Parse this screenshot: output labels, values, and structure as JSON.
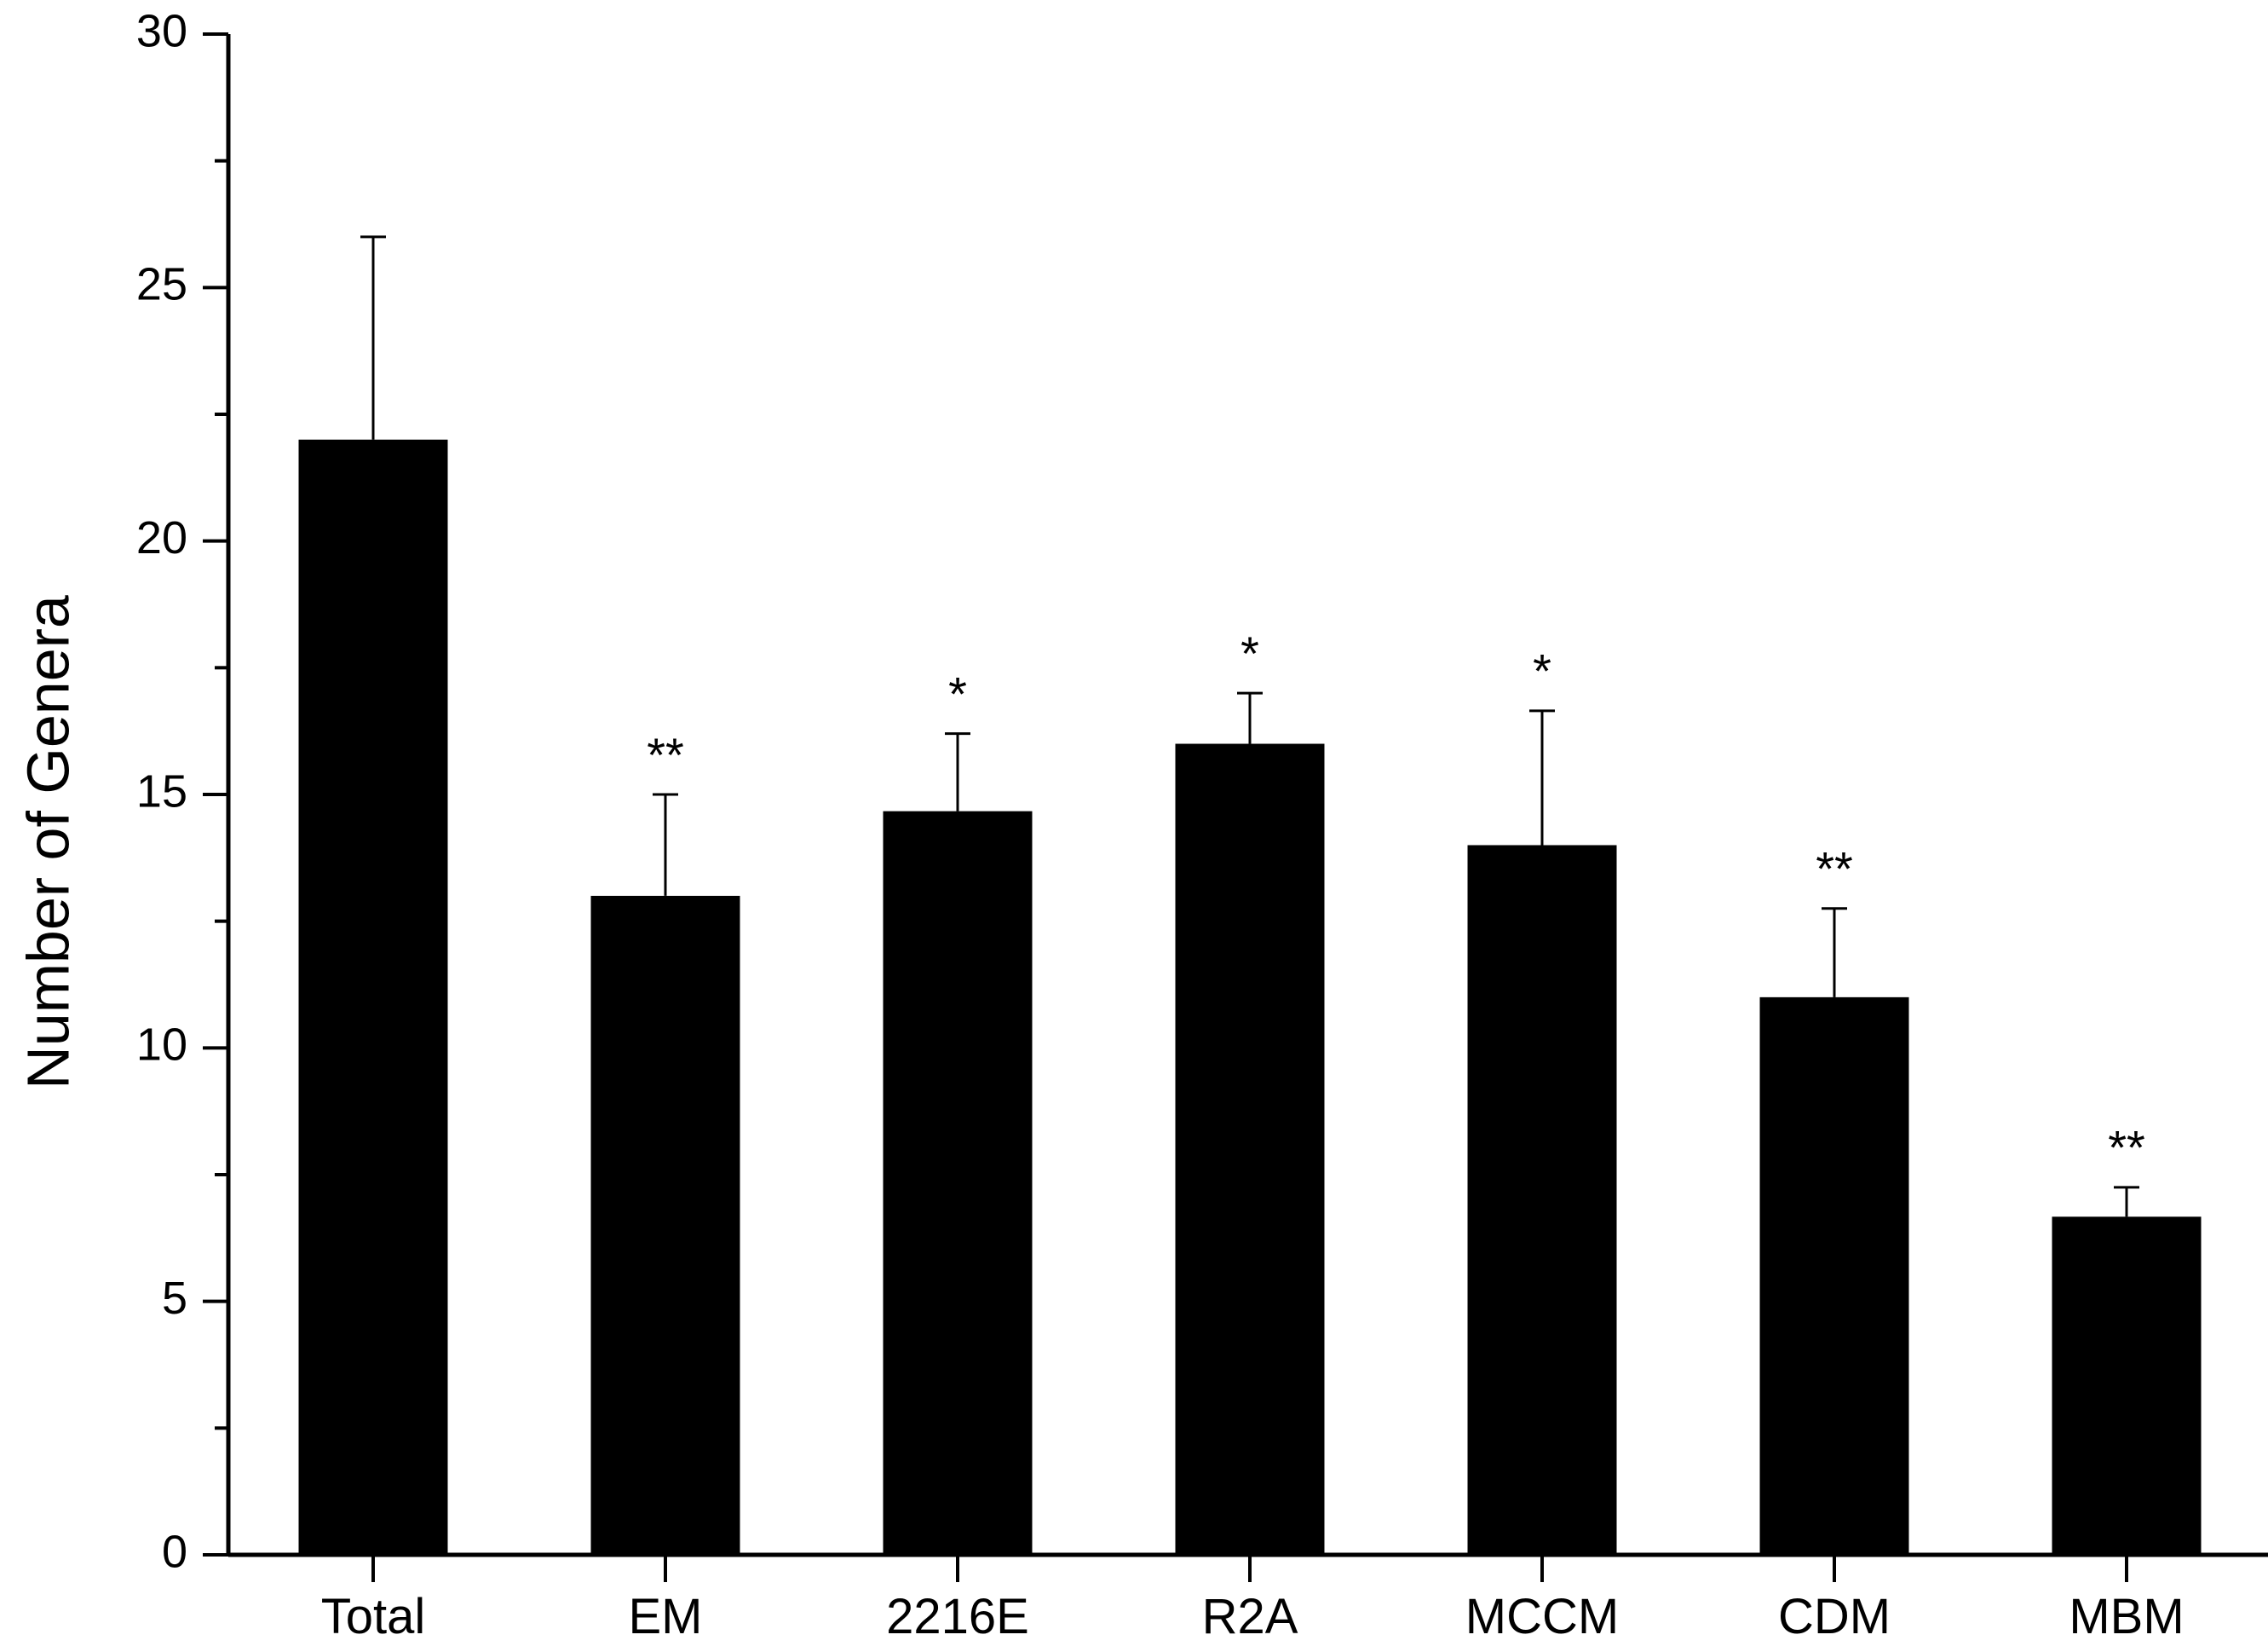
{
  "chart_data": {
    "type": "bar",
    "title": "",
    "xlabel": "",
    "ylabel": "Number of Genera",
    "ylim": [
      0,
      30
    ],
    "y_major_ticks": [
      0,
      5,
      10,
      15,
      20,
      25,
      30
    ],
    "y_minor_ticks": [
      2.5,
      7.5,
      12.5,
      17.5,
      22.5,
      27.5
    ],
    "grid": false,
    "legend": "none",
    "bar_color": "#000000",
    "categories": [
      "Total",
      "EM",
      "2216E",
      "R2A",
      "MCCM",
      "CDM",
      "MBM"
    ],
    "values": [
      22,
      13,
      14.67,
      16,
      14,
      11,
      6.67
    ],
    "error_upper": [
      26,
      15,
      16.2,
      17,
      16.65,
      12.75,
      7.25
    ],
    "significance": [
      "",
      "**",
      "*",
      "*",
      "*",
      "**",
      "**"
    ]
  }
}
